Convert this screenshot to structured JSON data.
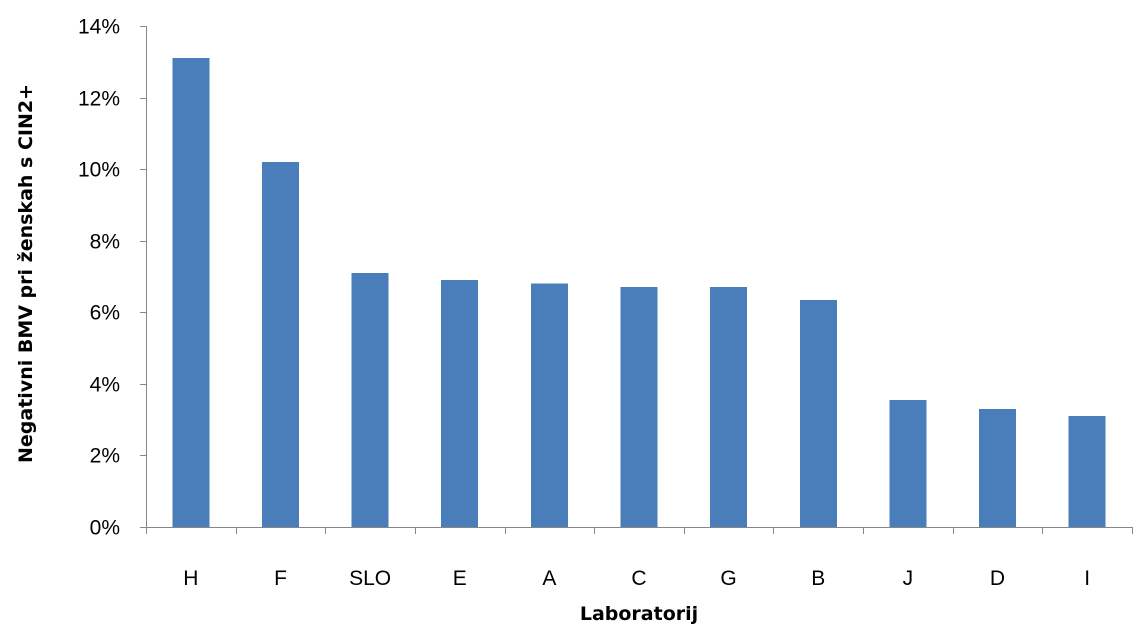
{
  "chart_data": {
    "type": "bar",
    "title": "",
    "xlabel": "Laboratorij",
    "ylabel": "Negativni BMV pri ženskah s CIN2+",
    "categories": [
      "H",
      "F",
      "SLO",
      "E",
      "A",
      "C",
      "G",
      "B",
      "J",
      "D",
      "I"
    ],
    "values": [
      13.1,
      10.2,
      7.1,
      6.9,
      6.8,
      6.7,
      6.7,
      6.35,
      3.55,
      3.3,
      3.1
    ],
    "ylim": [
      0,
      14
    ],
    "yticks": [
      0,
      2,
      4,
      6,
      8,
      10,
      12,
      14
    ],
    "ytick_labels": [
      "0%",
      "2%",
      "4%",
      "6%",
      "8%",
      "10%",
      "12%",
      "14%"
    ],
    "grid": false,
    "legend": "none",
    "bar_color": "#4a7ebb",
    "axis_color": "#868686"
  }
}
